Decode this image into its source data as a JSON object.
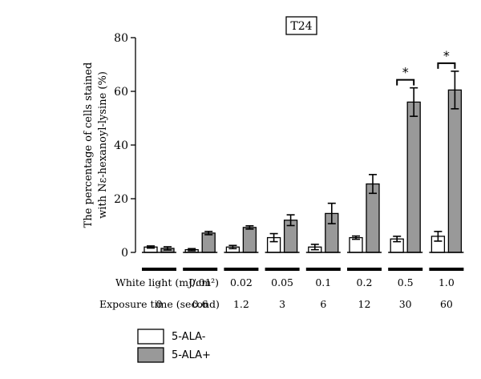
{
  "chart_data": {
    "type": "bar",
    "title": "T24",
    "ylabel_line1": "The percentage of cells stained",
    "ylabel_line2": "with Nε-hexanoyl-lysine (%)",
    "ylim": [
      0,
      80
    ],
    "yticks": [
      "0",
      "20",
      "40",
      "60",
      "80"
    ],
    "row1_label": "White light (mJ/cm²)",
    "row2_label": "Exposure time (second)",
    "white_light": [
      "-",
      "0.01",
      "0.02",
      "0.05",
      "0.1",
      "0.2",
      "0.5",
      "1.0"
    ],
    "exposure_time": [
      "0",
      "0.6",
      "1.2",
      "3",
      "6",
      "12",
      "30",
      "60"
    ],
    "series": [
      {
        "name": "5-ALA-",
        "color": "#ffffff",
        "values": [
          2.0,
          1.0,
          2.0,
          5.5,
          2.0,
          5.5,
          5.0,
          6.0
        ],
        "errors": [
          0.4,
          0.4,
          0.6,
          1.5,
          1.0,
          0.6,
          1.0,
          1.8
        ]
      },
      {
        "name": "5-ALA+",
        "color": "#999999",
        "values": [
          1.5,
          7.2,
          9.3,
          12.0,
          14.5,
          25.5,
          56.0,
          60.5
        ],
        "errors": [
          0.6,
          0.6,
          0.6,
          2.0,
          3.8,
          3.5,
          5.3,
          7.0
        ]
      }
    ],
    "significance": [
      "",
      "",
      "",
      "",
      "",
      "",
      "*",
      "*"
    ]
  }
}
